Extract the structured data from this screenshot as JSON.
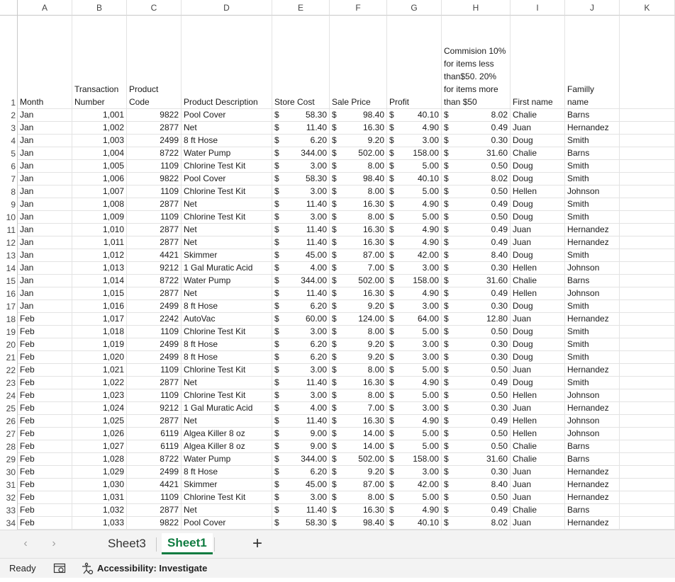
{
  "columns": [
    "A",
    "B",
    "C",
    "D",
    "E",
    "F",
    "G",
    "H",
    "I",
    "J",
    "K"
  ],
  "row_numbers": [
    1,
    2,
    3,
    4,
    5,
    6,
    7,
    8,
    9,
    10,
    11,
    12,
    13,
    14,
    15,
    16,
    17,
    18,
    19,
    20,
    21,
    22,
    23,
    24,
    25,
    26,
    27,
    28,
    29,
    30,
    31,
    32,
    33,
    34
  ],
  "headers": {
    "month": "Month",
    "transaction": "Transaction Number",
    "product_code": "Product Code",
    "description": "Product Description",
    "store_cost": "Store Cost",
    "sale_price": "Sale Price",
    "profit": "Profit",
    "commission": "Commision 10% for items less than$50. 20% for items more than $50",
    "first_name": "First name",
    "family_name": "Familly name"
  },
  "currency_symbol": "$",
  "rows": [
    [
      "Jan",
      "1,001",
      "9822",
      "Pool Cover",
      "58.30",
      "98.40",
      "40.10",
      "8.02",
      "Chalie",
      "Barns"
    ],
    [
      "Jan",
      "1,002",
      "2877",
      "Net",
      "11.40",
      "16.30",
      "4.90",
      "0.49",
      "Juan",
      "Hernandez"
    ],
    [
      "Jan",
      "1,003",
      "2499",
      "8 ft Hose",
      "6.20",
      "9.20",
      "3.00",
      "0.30",
      "Doug",
      "Smith"
    ],
    [
      "Jan",
      "1,004",
      "8722",
      "Water Pump",
      "344.00",
      "502.00",
      "158.00",
      "31.60",
      "Chalie",
      "Barns"
    ],
    [
      "Jan",
      "1,005",
      "1109",
      "Chlorine Test Kit",
      "3.00",
      "8.00",
      "5.00",
      "0.50",
      "Doug",
      "Smith"
    ],
    [
      "Jan",
      "1,006",
      "9822",
      "Pool Cover",
      "58.30",
      "98.40",
      "40.10",
      "8.02",
      "Doug",
      "Smith"
    ],
    [
      "Jan",
      "1,007",
      "1109",
      "Chlorine Test Kit",
      "3.00",
      "8.00",
      "5.00",
      "0.50",
      "Hellen",
      "Johnson"
    ],
    [
      "Jan",
      "1,008",
      "2877",
      "Net",
      "11.40",
      "16.30",
      "4.90",
      "0.49",
      "Doug",
      "Smith"
    ],
    [
      "Jan",
      "1,009",
      "1109",
      "Chlorine Test Kit",
      "3.00",
      "8.00",
      "5.00",
      "0.50",
      "Doug",
      "Smith"
    ],
    [
      "Jan",
      "1,010",
      "2877",
      "Net",
      "11.40",
      "16.30",
      "4.90",
      "0.49",
      "Juan",
      "Hernandez"
    ],
    [
      "Jan",
      "1,011",
      "2877",
      "Net",
      "11.40",
      "16.30",
      "4.90",
      "0.49",
      "Juan",
      "Hernandez"
    ],
    [
      "Jan",
      "1,012",
      "4421",
      "Skimmer",
      "45.00",
      "87.00",
      "42.00",
      "8.40",
      "Doug",
      "Smith"
    ],
    [
      "Jan",
      "1,013",
      "9212",
      "1 Gal Muratic Acid",
      "4.00",
      "7.00",
      "3.00",
      "0.30",
      "Hellen",
      "Johnson"
    ],
    [
      "Jan",
      "1,014",
      "8722",
      "Water Pump",
      "344.00",
      "502.00",
      "158.00",
      "31.60",
      "Chalie",
      "Barns"
    ],
    [
      "Jan",
      "1,015",
      "2877",
      "Net",
      "11.40",
      "16.30",
      "4.90",
      "0.49",
      "Hellen",
      "Johnson"
    ],
    [
      "Jan",
      "1,016",
      "2499",
      "8 ft Hose",
      "6.20",
      "9.20",
      "3.00",
      "0.30",
      "Doug",
      "Smith"
    ],
    [
      "Feb",
      "1,017",
      "2242",
      "AutoVac",
      "60.00",
      "124.00",
      "64.00",
      "12.80",
      "Juan",
      "Hernandez"
    ],
    [
      "Feb",
      "1,018",
      "1109",
      "Chlorine Test Kit",
      "3.00",
      "8.00",
      "5.00",
      "0.50",
      "Doug",
      "Smith"
    ],
    [
      "Feb",
      "1,019",
      "2499",
      "8 ft Hose",
      "6.20",
      "9.20",
      "3.00",
      "0.30",
      "Doug",
      "Smith"
    ],
    [
      "Feb",
      "1,020",
      "2499",
      "8 ft Hose",
      "6.20",
      "9.20",
      "3.00",
      "0.30",
      "Doug",
      "Smith"
    ],
    [
      "Feb",
      "1,021",
      "1109",
      "Chlorine Test Kit",
      "3.00",
      "8.00",
      "5.00",
      "0.50",
      "Juan",
      "Hernandez"
    ],
    [
      "Feb",
      "1,022",
      "2877",
      "Net",
      "11.40",
      "16.30",
      "4.90",
      "0.49",
      "Doug",
      "Smith"
    ],
    [
      "Feb",
      "1,023",
      "1109",
      "Chlorine Test Kit",
      "3.00",
      "8.00",
      "5.00",
      "0.50",
      "Hellen",
      "Johnson"
    ],
    [
      "Feb",
      "1,024",
      "9212",
      "1 Gal Muratic Acid",
      "4.00",
      "7.00",
      "3.00",
      "0.30",
      "Juan",
      "Hernandez"
    ],
    [
      "Feb",
      "1,025",
      "2877",
      "Net",
      "11.40",
      "16.30",
      "4.90",
      "0.49",
      "Hellen",
      "Johnson"
    ],
    [
      "Feb",
      "1,026",
      "6119",
      "Algea Killer 8 oz",
      "9.00",
      "14.00",
      "5.00",
      "0.50",
      "Hellen",
      "Johnson"
    ],
    [
      "Feb",
      "1,027",
      "6119",
      "Algea Killer 8 oz",
      "9.00",
      "14.00",
      "5.00",
      "0.50",
      "Chalie",
      "Barns"
    ],
    [
      "Feb",
      "1,028",
      "8722",
      "Water Pump",
      "344.00",
      "502.00",
      "158.00",
      "31.60",
      "Chalie",
      "Barns"
    ],
    [
      "Feb",
      "1,029",
      "2499",
      "8 ft Hose",
      "6.20",
      "9.20",
      "3.00",
      "0.30",
      "Juan",
      "Hernandez"
    ],
    [
      "Feb",
      "1,030",
      "4421",
      "Skimmer",
      "45.00",
      "87.00",
      "42.00",
      "8.40",
      "Juan",
      "Hernandez"
    ],
    [
      "Feb",
      "1,031",
      "1109",
      "Chlorine Test Kit",
      "3.00",
      "8.00",
      "5.00",
      "0.50",
      "Juan",
      "Hernandez"
    ],
    [
      "Feb",
      "1,032",
      "2877",
      "Net",
      "11.40",
      "16.30",
      "4.90",
      "0.49",
      "Chalie",
      "Barns"
    ],
    [
      "Feb",
      "1,033",
      "9822",
      "Pool Cover",
      "58.30",
      "98.40",
      "40.10",
      "8.02",
      "Juan",
      "Hernandez"
    ]
  ],
  "sheet_tabs": [
    {
      "label": "Sheet3",
      "active": false
    },
    {
      "label": "Sheet1",
      "active": true
    }
  ],
  "add_sheet_icon": "+",
  "status": {
    "ready": "Ready",
    "accessibility": "Accessibility: Investigate"
  },
  "colors": {
    "active_tab": "#107c41",
    "grid_line": "#e3e3e3",
    "bar_bg": "#f3f3f3"
  }
}
